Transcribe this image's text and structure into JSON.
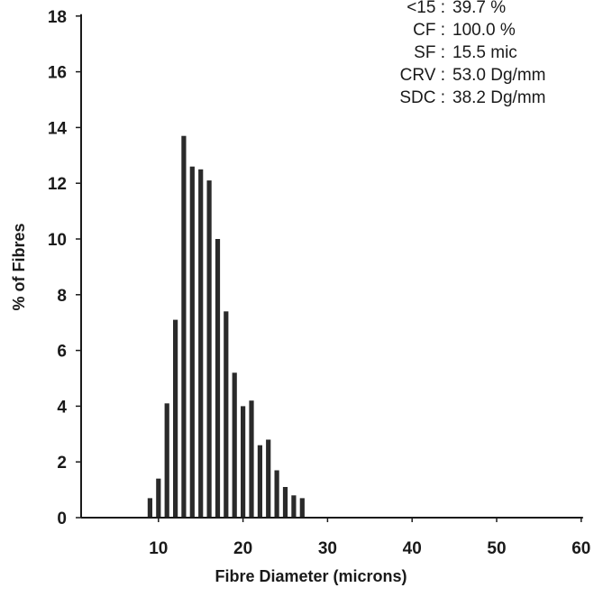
{
  "chart_data": {
    "type": "bar",
    "xlabel": "Fibre Diameter (microns)",
    "ylabel": "% of Fibres",
    "xlim": [
      0,
      60
    ],
    "ylim": [
      0,
      18
    ],
    "xticks": [
      10,
      20,
      30,
      40,
      50,
      60
    ],
    "yticks": [
      0,
      2,
      4,
      6,
      8,
      10,
      12,
      14,
      16,
      18
    ],
    "grid": false,
    "bar_color": "#2a2a2a",
    "x": [
      9,
      10,
      11,
      12,
      13,
      14,
      15,
      16,
      17,
      18,
      19,
      20,
      21,
      22,
      23,
      24,
      25,
      26,
      27
    ],
    "values": [
      0.7,
      1.4,
      4.1,
      7.1,
      13.7,
      12.6,
      12.5,
      12.1,
      10.0,
      7.4,
      5.2,
      4.0,
      4.2,
      2.6,
      2.8,
      1.7,
      1.1,
      0.8,
      0.7
    ],
    "stats": [
      {
        "label": "<15 :",
        "value": "39.7 %"
      },
      {
        "label": "CF :",
        "value": "100.0 %"
      },
      {
        "label": "SF :",
        "value": "15.5 mic"
      },
      {
        "label": "CRV :",
        "value": "53.0 Dg/mm"
      },
      {
        "label": "SDC :",
        "value": "38.2 Dg/mm"
      }
    ]
  }
}
